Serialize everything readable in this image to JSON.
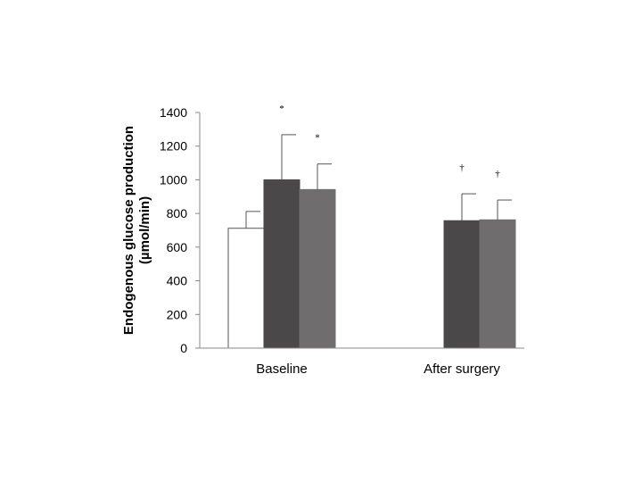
{
  "chart_data": {
    "type": "bar",
    "ylabel_line1": "Endogenous glucose production",
    "ylabel_line2": "(µmol/min)",
    "xlabel": "",
    "ylim": [
      0,
      1400
    ],
    "yticks": [
      0,
      200,
      400,
      600,
      800,
      1000,
      1200,
      1400
    ],
    "categories": [
      "Baseline",
      "After surgery"
    ],
    "grid": false,
    "series": [
      {
        "color": "#ffffff",
        "values": [
          712,
          null
        ],
        "errors": [
          100,
          null
        ],
        "annotations": [
          "",
          ""
        ]
      },
      {
        "color": "#4a4849",
        "values": [
          1000,
          757
        ],
        "errors": [
          268,
          160
        ],
        "annotations": [
          "*",
          "†"
        ]
      },
      {
        "color": "#6f6d6e",
        "values": [
          942,
          762
        ],
        "errors": [
          152,
          118
        ],
        "annotations": [
          "*",
          "†"
        ]
      }
    ]
  }
}
